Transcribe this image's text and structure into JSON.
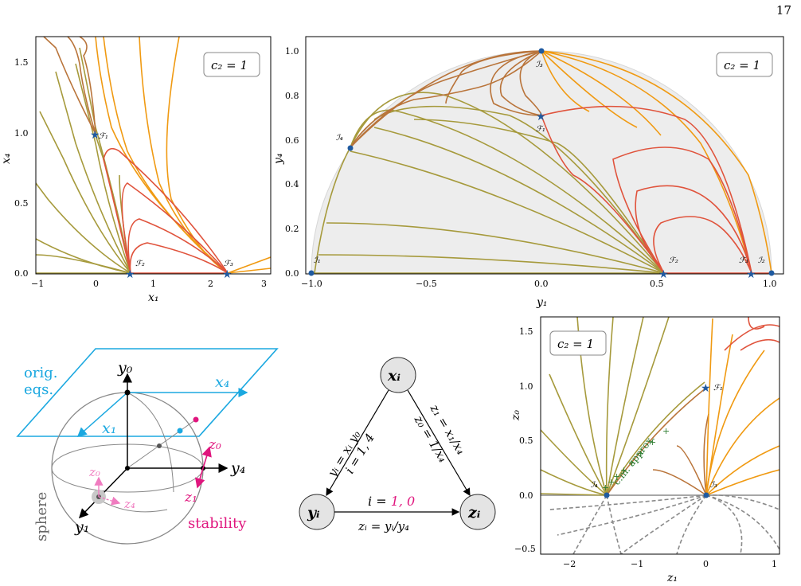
{
  "page": {
    "number": "17"
  },
  "colors": {
    "olive": "#a69a3c",
    "brown": "#b9743a",
    "orange": "#f09a12",
    "red": "#e0533c",
    "blue": "#1f5aa0",
    "gray": "#8a8a8a",
    "cyan": "#1ba8e0",
    "magenta": "#e0167e",
    "pink": "#f07cc0",
    "green": "#2e7d32",
    "shade": "#ededed"
  },
  "panel_a": {
    "box_label": "c₂ = 1",
    "xlabel": "x₁",
    "ylabel": "x₄",
    "xticks": [
      "−1",
      "0",
      "1",
      "2",
      "3"
    ],
    "yticks": [
      "0.0",
      "0.5",
      "1.0",
      "1.5"
    ],
    "points": {
      "F1": "ℱ₁",
      "F2": "ℱ₂",
      "F3": "ℱ₃"
    }
  },
  "panel_b": {
    "box_label": "c₂ = 1",
    "xlabel": "y₁",
    "ylabel": "y₄",
    "xticks": [
      "−1.0",
      "−0.5",
      "0.0",
      "0.5",
      "1.0"
    ],
    "yticks": [
      "0.0",
      "0.2",
      "0.4",
      "0.6",
      "0.8",
      "1.0"
    ],
    "points": {
      "I1": "ℐ₁",
      "I2": "ℐ₂",
      "I3": "ℐ₃",
      "I4": "ℐ₄",
      "F1": "ℱ₁",
      "F2": "ℱ₂",
      "F3": "ℱ₃"
    }
  },
  "panel_c": {
    "plane_label_line1": "orig.",
    "plane_label_line2": "eqs.",
    "x4": "x₄",
    "x1": "x₁",
    "y0": "y₀",
    "y4": "y₄",
    "y1": "y₁",
    "z0": "z₀",
    "z1": "z₁",
    "z0_pink": "z₀",
    "z4_pink": "z₄",
    "sphere": "sphere",
    "stability": "stability"
  },
  "panel_d": {
    "node_x": "xᵢ",
    "node_y": "yᵢ",
    "node_z": "zᵢ",
    "left_eq": "yᵢ = xᵢ y₀",
    "left_i": "i = 1, 4",
    "right_eq": "z₁ = x₁/x₄",
    "right_eq2": "z₀ = 1/x₄",
    "bottom_i_prefix": "i = ",
    "bottom_i_value": "1, 0",
    "bottom_eq": "zᵢ = yᵢ/y₄"
  },
  "panel_e": {
    "box_label": "c₂ = 1",
    "xlabel": "z₁",
    "ylabel": "z₀",
    "xticks": [
      "−2",
      "−1",
      "0",
      "1"
    ],
    "yticks": [
      "−0.5",
      "0.0",
      "0.5",
      "1.0",
      "1.5"
    ],
    "points": {
      "I4": "ℐ₄",
      "I3": "ℐ₃",
      "F1": "ℱ₁"
    },
    "annotation": "c.m. approx."
  }
}
